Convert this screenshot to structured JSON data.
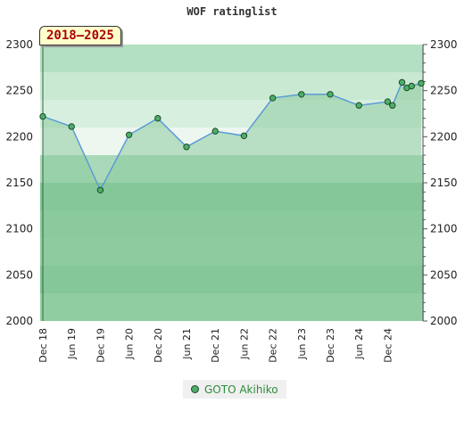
{
  "chart_data": {
    "type": "line",
    "title": "WOF ratinglist",
    "period": "2018–2025",
    "ylim": [
      2000,
      2300
    ],
    "y_ticks": [
      2000,
      2050,
      2100,
      2150,
      2200,
      2250,
      2300
    ],
    "x_ticks": [
      "Dec 18",
      "Jun 19",
      "Dec 19",
      "Jun 20",
      "Dec 20",
      "Jun 21",
      "Dec 21",
      "Jun 22",
      "Dec 22",
      "Jun 23",
      "Dec 23",
      "Jun 24",
      "Dec 24"
    ],
    "x_start": "2018-12",
    "x_end": "2025-07",
    "series": [
      {
        "name": "GOTO Akihiko",
        "color": "#4caf68",
        "line_color": "#5b9bd5",
        "points": [
          {
            "x": "2018-12",
            "y": 2222
          },
          {
            "x": "2019-06",
            "y": 2211
          },
          {
            "x": "2019-12",
            "y": 2142
          },
          {
            "x": "2020-06",
            "y": 2202
          },
          {
            "x": "2020-12",
            "y": 2220
          },
          {
            "x": "2021-06",
            "y": 2189
          },
          {
            "x": "2021-12",
            "y": 2206
          },
          {
            "x": "2022-06",
            "y": 2201
          },
          {
            "x": "2022-12",
            "y": 2242
          },
          {
            "x": "2023-06",
            "y": 2246
          },
          {
            "x": "2023-12",
            "y": 2246
          },
          {
            "x": "2024-06",
            "y": 2234
          },
          {
            "x": "2024-12",
            "y": 2238
          },
          {
            "x": "2025-01",
            "y": 2234
          },
          {
            "x": "2025-03",
            "y": 2259
          },
          {
            "x": "2025-04",
            "y": 2253
          },
          {
            "x": "2025-05",
            "y": 2255
          },
          {
            "x": "2025-07",
            "y": 2258
          }
        ]
      }
    ],
    "legend_position": "bottom-center",
    "bands": [
      "#b3dfc2",
      "#c9e9d3",
      "#d7efdf",
      "#edf7f0",
      "#a9d9b8",
      "#7cc493",
      "#88cb9c",
      "#90ce9f",
      "#7cc493",
      "#94d0a5"
    ],
    "fill_color": "#8ccb9f"
  }
}
